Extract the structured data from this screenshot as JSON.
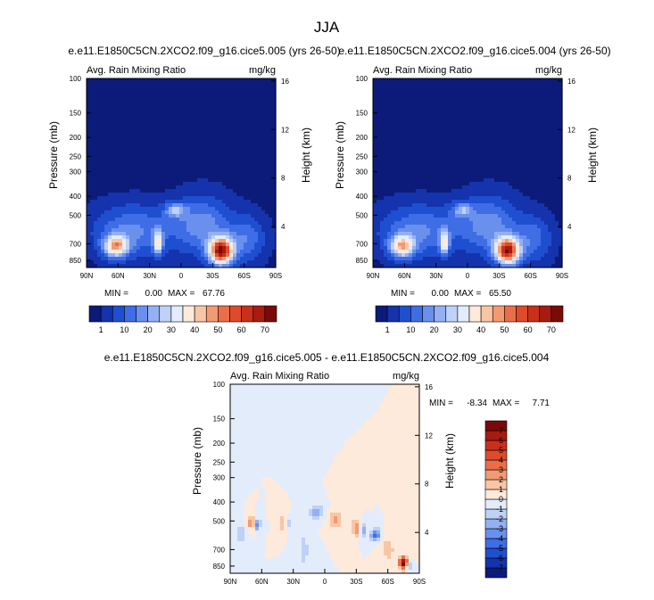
{
  "figure": {
    "title": "JJA",
    "background": "#ffffff",
    "axis_color": "#000000"
  },
  "chart_data": [
    {
      "type": "heatmap",
      "title": "e.e11.E1850C5CN.2XCO2.f09_g16.cice5.005 (yrs 26-50)",
      "left_label": "Avg. Rain Mixing Ratio",
      "right_label": "mg/kg",
      "ylabel": "Pressure (mb)",
      "y2label": "Height (km)",
      "xlim": [
        90,
        -90
      ],
      "x_ticks": [
        90,
        60,
        30,
        0,
        -30,
        -60,
        -90
      ],
      "x_tick_labels": [
        "90N",
        "60N",
        "30N",
        "0",
        "30S",
        "60S",
        "90S"
      ],
      "ylim": [
        100,
        925
      ],
      "y_scale": "log",
      "y_ticks": [
        100,
        150,
        200,
        250,
        300,
        400,
        500,
        700,
        850
      ],
      "y_tick_labels": [
        "100",
        "150",
        "200",
        "250",
        "300",
        "400",
        "500",
        "700",
        "850"
      ],
      "y2_ticks": [
        4,
        8,
        12,
        16
      ],
      "y2_tick_labels": [
        "4",
        "8",
        "12",
        "16"
      ],
      "stats": {
        "min_label": "MIN =",
        "min": "0.00",
        "max_label": "MAX =",
        "max": "67.76"
      },
      "colorbar": {
        "orientation": "horizontal",
        "levels": [
          1,
          5,
          10,
          15,
          20,
          25,
          30,
          35,
          40,
          45,
          50,
          55,
          60,
          65,
          70
        ],
        "labels": [
          "1",
          "10",
          "20",
          "30",
          "40",
          "50",
          "60",
          "70"
        ],
        "colors": [
          "#0c1b7a",
          "#1533ad",
          "#1f4fd1",
          "#3f6de6",
          "#6a90ee",
          "#95b0f2",
          "#bed1f7",
          "#e3ecfb",
          "#fdeadb",
          "#f8c6a5",
          "#f29a74",
          "#eb6e4a",
          "#e04a2c",
          "#c9301b",
          "#a81b10",
          "#7a0a08"
        ]
      },
      "features": [
        {
          "lat": 62,
          "p": 720,
          "value": 42,
          "sx": 8,
          "sp": 0.09
        },
        {
          "lat": 22,
          "p": 690,
          "value": 34,
          "sx": 3,
          "sp": 0.1
        },
        {
          "lat": -38,
          "p": 760,
          "value": 67.76,
          "sx": 8,
          "sp": 0.11
        },
        {
          "lat": 5,
          "p": 470,
          "value": 20,
          "sx": 7,
          "sp": 0.06
        },
        {
          "lat": 45,
          "p": 600,
          "value": 16,
          "sx": 26,
          "sp": 0.2
        },
        {
          "lat": -20,
          "p": 560,
          "value": 18,
          "sx": 18,
          "sp": 0.22
        },
        {
          "lat": -62,
          "p": 660,
          "value": 14,
          "sx": 12,
          "sp": 0.18
        }
      ]
    },
    {
      "type": "heatmap",
      "title": "e.e11.E1850C5CN.2XCO2.f09_g16.cice5.004 (yrs 26-50)",
      "left_label": "Avg. Rain Mixing Ratio",
      "right_label": "mg/kg",
      "ylabel": "Pressure (mb)",
      "y2label": "Height (km)",
      "xlim": [
        90,
        -90
      ],
      "x_ticks": [
        90,
        60,
        30,
        0,
        -30,
        -60,
        -90
      ],
      "x_tick_labels": [
        "90N",
        "60N",
        "30N",
        "0",
        "30S",
        "60S",
        "90S"
      ],
      "ylim": [
        100,
        925
      ],
      "y_scale": "log",
      "y_ticks": [
        100,
        150,
        200,
        250,
        300,
        400,
        500,
        700,
        850
      ],
      "y_tick_labels": [
        "100",
        "150",
        "200",
        "250",
        "300",
        "400",
        "500",
        "700",
        "850"
      ],
      "y2_ticks": [
        4,
        8,
        12,
        16
      ],
      "y2_tick_labels": [
        "4",
        "8",
        "12",
        "16"
      ],
      "stats": {
        "min_label": "MIN =",
        "min": "0.00",
        "max_label": "MAX =",
        "max": "65.50"
      },
      "colorbar": {
        "orientation": "horizontal",
        "levels": [
          1,
          5,
          10,
          15,
          20,
          25,
          30,
          35,
          40,
          45,
          50,
          55,
          60,
          65,
          70
        ],
        "labels": [
          "1",
          "10",
          "20",
          "30",
          "40",
          "50",
          "60",
          "70"
        ],
        "colors": [
          "#0c1b7a",
          "#1533ad",
          "#1f4fd1",
          "#3f6de6",
          "#6a90ee",
          "#95b0f2",
          "#bed1f7",
          "#e3ecfb",
          "#fdeadb",
          "#f8c6a5",
          "#f29a74",
          "#eb6e4a",
          "#e04a2c",
          "#c9301b",
          "#a81b10",
          "#7a0a08"
        ]
      },
      "features": [
        {
          "lat": 62,
          "p": 720,
          "value": 40,
          "sx": 8,
          "sp": 0.09
        },
        {
          "lat": 22,
          "p": 690,
          "value": 33,
          "sx": 3,
          "sp": 0.1
        },
        {
          "lat": -38,
          "p": 760,
          "value": 65.5,
          "sx": 8,
          "sp": 0.11
        },
        {
          "lat": 5,
          "p": 470,
          "value": 19,
          "sx": 7,
          "sp": 0.06
        },
        {
          "lat": 45,
          "p": 600,
          "value": 16,
          "sx": 26,
          "sp": 0.2
        },
        {
          "lat": -20,
          "p": 560,
          "value": 18,
          "sx": 18,
          "sp": 0.22
        },
        {
          "lat": -62,
          "p": 660,
          "value": 13,
          "sx": 12,
          "sp": 0.18
        }
      ]
    },
    {
      "type": "heatmap",
      "title": "e.e11.E1850C5CN.2XCO2.f09_g16.cice5.005 - e.e11.E1850C5CN.2XCO2.f09_g16.cice5.004",
      "left_label": "Avg. Rain Mixing Ratio",
      "right_label": "mg/kg",
      "ylabel": "Pressure (mb)",
      "y2label": "Height (km)",
      "xlim": [
        90,
        -90
      ],
      "x_ticks": [
        90,
        60,
        30,
        0,
        -30,
        -60,
        -90
      ],
      "x_tick_labels": [
        "90N",
        "60N",
        "30N",
        "0",
        "30S",
        "60S",
        "90S"
      ],
      "ylim": [
        100,
        925
      ],
      "y_scale": "log",
      "y_ticks": [
        100,
        150,
        200,
        250,
        300,
        400,
        500,
        700,
        850
      ],
      "y_tick_labels": [
        "100",
        "150",
        "200",
        "250",
        "300",
        "400",
        "500",
        "700",
        "850"
      ],
      "y2_ticks": [
        4,
        8,
        12,
        16
      ],
      "y2_tick_labels": [
        "4",
        "8",
        "12",
        "16"
      ],
      "stats": {
        "min_label": "MIN =",
        "min": "-8.34",
        "max_label": "MAX =",
        "max": "7.71"
      },
      "colorbar": {
        "orientation": "vertical",
        "levels": [
          -7,
          -6,
          -5,
          -4,
          -3,
          -2,
          -1,
          0,
          1,
          2,
          3,
          4,
          5,
          6,
          7
        ],
        "labels": [
          "-7",
          "-6",
          "-5",
          "-4",
          "-3",
          "-2",
          "-1",
          "0",
          "1",
          "2",
          "3",
          "4",
          "5",
          "6",
          "7"
        ],
        "colors": [
          "#0c1b7a",
          "#1533ad",
          "#1f4fd1",
          "#3f6de6",
          "#6a90ee",
          "#95b0f2",
          "#bed1f7",
          "#e3ecfb",
          "#fdeadb",
          "#f8c6a5",
          "#f29a74",
          "#eb6e4a",
          "#e04a2c",
          "#c9301b",
          "#a81b10",
          "#7a0a08"
        ]
      },
      "features": [
        {
          "lat": 70,
          "p": 510,
          "value": 3,
          "sx": 3,
          "sp": 0.05
        },
        {
          "lat": 64,
          "p": 520,
          "value": -4,
          "sx": 2,
          "sp": 0.05
        },
        {
          "lat": 40,
          "p": 515,
          "value": 2,
          "sx": 3,
          "sp": 0.06
        },
        {
          "lat": 35,
          "p": 520,
          "value": -2,
          "sx": 2,
          "sp": 0.05
        },
        {
          "lat": 8,
          "p": 450,
          "value": -3,
          "sx": 5,
          "sp": 0.05
        },
        {
          "lat": -10,
          "p": 490,
          "value": 2.5,
          "sx": 4,
          "sp": 0.07
        },
        {
          "lat": -30,
          "p": 540,
          "value": 3,
          "sx": 3,
          "sp": 0.07
        },
        {
          "lat": -36,
          "p": 560,
          "value": -3,
          "sx": 2,
          "sp": 0.06
        },
        {
          "lat": -48,
          "p": 590,
          "value": -5,
          "sx": 3,
          "sp": 0.05
        },
        {
          "lat": -60,
          "p": 700,
          "value": 2,
          "sx": 4,
          "sp": 0.08
        },
        {
          "lat": -75,
          "p": 820,
          "value": 7.71,
          "sx": 3,
          "sp": 0.05
        },
        {
          "lat": -80,
          "p": 840,
          "value": -3,
          "sx": 2,
          "sp": 0.04
        },
        {
          "lat": 80,
          "p": 580,
          "value": -2,
          "sx": 3,
          "sp": 0.08
        },
        {
          "lat": 20,
          "p": 700,
          "value": -1.5,
          "sx": 4,
          "sp": 0.15
        }
      ]
    }
  ]
}
